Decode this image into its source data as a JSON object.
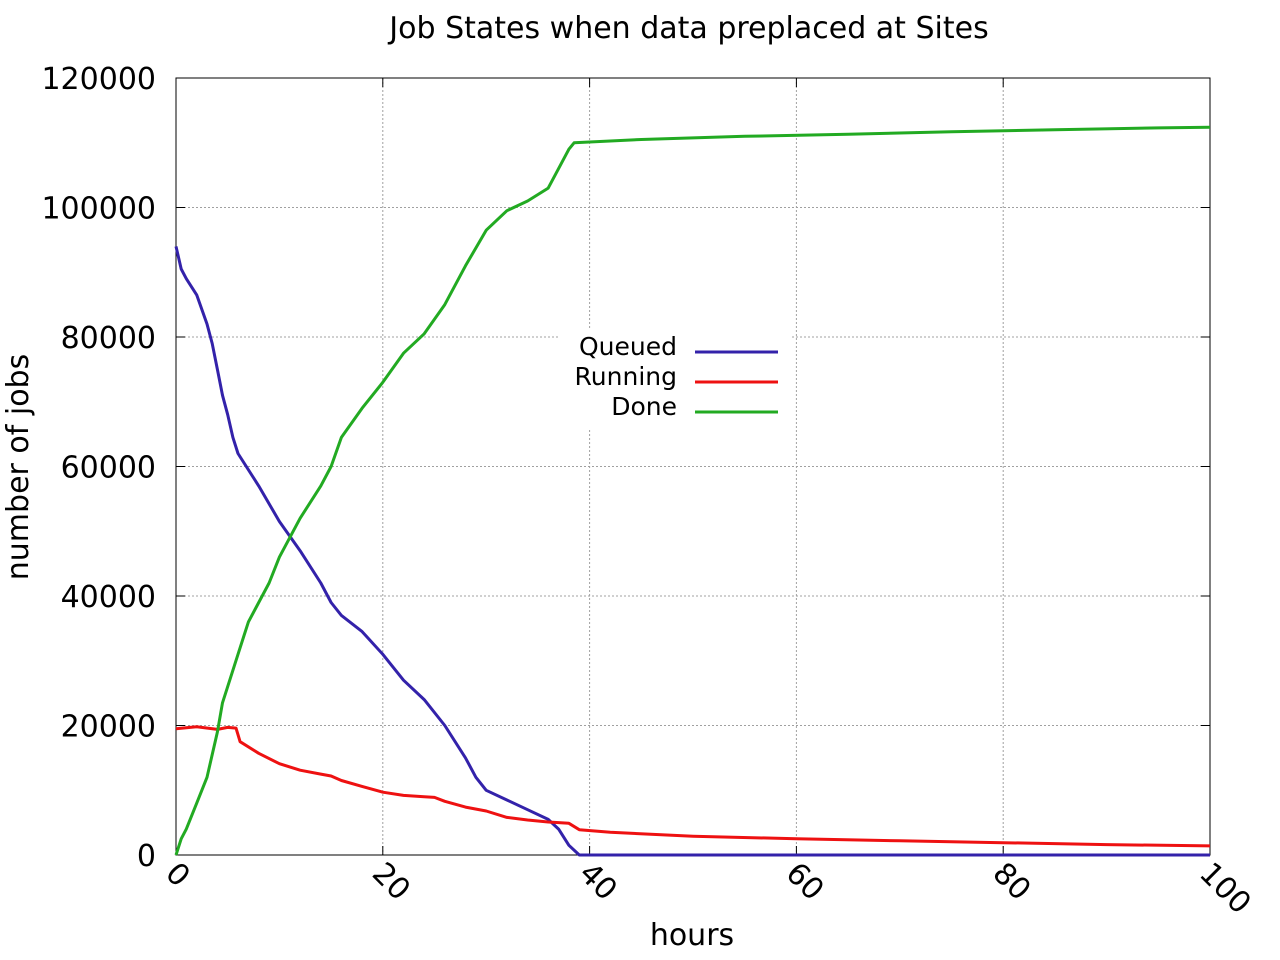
{
  "chart_data": {
    "type": "line",
    "title": "Job States when data preplaced at Sites",
    "xlabel": "hours",
    "ylabel": "number of jobs",
    "xlim": [
      0,
      100
    ],
    "ylim": [
      0,
      120000
    ],
    "xticks": [
      0,
      20,
      40,
      60,
      80,
      100
    ],
    "xtick_labels": [
      "0",
      "20",
      "40",
      "60",
      "80",
      "100"
    ],
    "yticks": [
      0,
      20000,
      40000,
      60000,
      80000,
      100000,
      120000
    ],
    "ytick_labels": [
      "0",
      "20000",
      "40000",
      "60000",
      "80000",
      "100000",
      "120000"
    ],
    "grid": true,
    "legend_position": "center",
    "series": [
      {
        "name": "Queued",
        "color": "#3322aa",
        "points": [
          [
            0,
            94000
          ],
          [
            0.5,
            90500
          ],
          [
            1,
            89000
          ],
          [
            2,
            86500
          ],
          [
            3,
            82000
          ],
          [
            3.5,
            79000
          ],
          [
            4,
            75000
          ],
          [
            4.5,
            71000
          ],
          [
            5,
            68000
          ],
          [
            5.5,
            64500
          ],
          [
            6,
            62000
          ],
          [
            8,
            57000
          ],
          [
            10,
            51500
          ],
          [
            12,
            47000
          ],
          [
            14,
            42000
          ],
          [
            15,
            39000
          ],
          [
            16,
            37000
          ],
          [
            18,
            34500
          ],
          [
            20,
            31000
          ],
          [
            22,
            27000
          ],
          [
            24,
            24000
          ],
          [
            26,
            20000
          ],
          [
            28,
            15000
          ],
          [
            29,
            12000
          ],
          [
            30,
            10000
          ],
          [
            32,
            8500
          ],
          [
            34,
            7000
          ],
          [
            36,
            5500
          ],
          [
            37,
            4000
          ],
          [
            38,
            1500
          ],
          [
            39,
            0
          ],
          [
            100,
            0
          ]
        ]
      },
      {
        "name": "Running",
        "color": "#ee1111",
        "points": [
          [
            0,
            19500
          ],
          [
            2,
            19800
          ],
          [
            4,
            19400
          ],
          [
            5,
            19700
          ],
          [
            5.8,
            19600
          ],
          [
            6.2,
            17500
          ],
          [
            8,
            15700
          ],
          [
            10,
            14100
          ],
          [
            12,
            13100
          ],
          [
            14,
            12500
          ],
          [
            15,
            12200
          ],
          [
            16,
            11500
          ],
          [
            18,
            10600
          ],
          [
            20,
            9700
          ],
          [
            22,
            9200
          ],
          [
            24,
            9000
          ],
          [
            25,
            8900
          ],
          [
            26,
            8300
          ],
          [
            28,
            7400
          ],
          [
            30,
            6800
          ],
          [
            32,
            5800
          ],
          [
            34,
            5400
          ],
          [
            36,
            5100
          ],
          [
            38,
            4900
          ],
          [
            39,
            3900
          ],
          [
            42,
            3500
          ],
          [
            50,
            2900
          ],
          [
            60,
            2500
          ],
          [
            70,
            2200
          ],
          [
            80,
            1900
          ],
          [
            90,
            1600
          ],
          [
            100,
            1400
          ]
        ]
      },
      {
        "name": "Done",
        "color": "#22aa22",
        "points": [
          [
            0,
            0
          ],
          [
            0.5,
            2500
          ],
          [
            1,
            4000
          ],
          [
            2,
            8000
          ],
          [
            3,
            12000
          ],
          [
            4,
            19000
          ],
          [
            4.5,
            23500
          ],
          [
            5,
            26000
          ],
          [
            6,
            31000
          ],
          [
            7,
            36000
          ],
          [
            9,
            42000
          ],
          [
            10,
            46000
          ],
          [
            12,
            52000
          ],
          [
            14,
            57000
          ],
          [
            15,
            60000
          ],
          [
            16,
            64500
          ],
          [
            18,
            69000
          ],
          [
            20,
            73000
          ],
          [
            22,
            77500
          ],
          [
            24,
            80500
          ],
          [
            26,
            85000
          ],
          [
            28,
            91000
          ],
          [
            30,
            96500
          ],
          [
            32,
            99500
          ],
          [
            34,
            101000
          ],
          [
            36,
            103000
          ],
          [
            37,
            106000
          ],
          [
            38,
            109000
          ],
          [
            38.5,
            110000
          ],
          [
            45,
            110500
          ],
          [
            55,
            111000
          ],
          [
            65,
            111300
          ],
          [
            75,
            111700
          ],
          [
            85,
            112000
          ],
          [
            95,
            112300
          ],
          [
            100,
            112400
          ]
        ]
      }
    ]
  }
}
